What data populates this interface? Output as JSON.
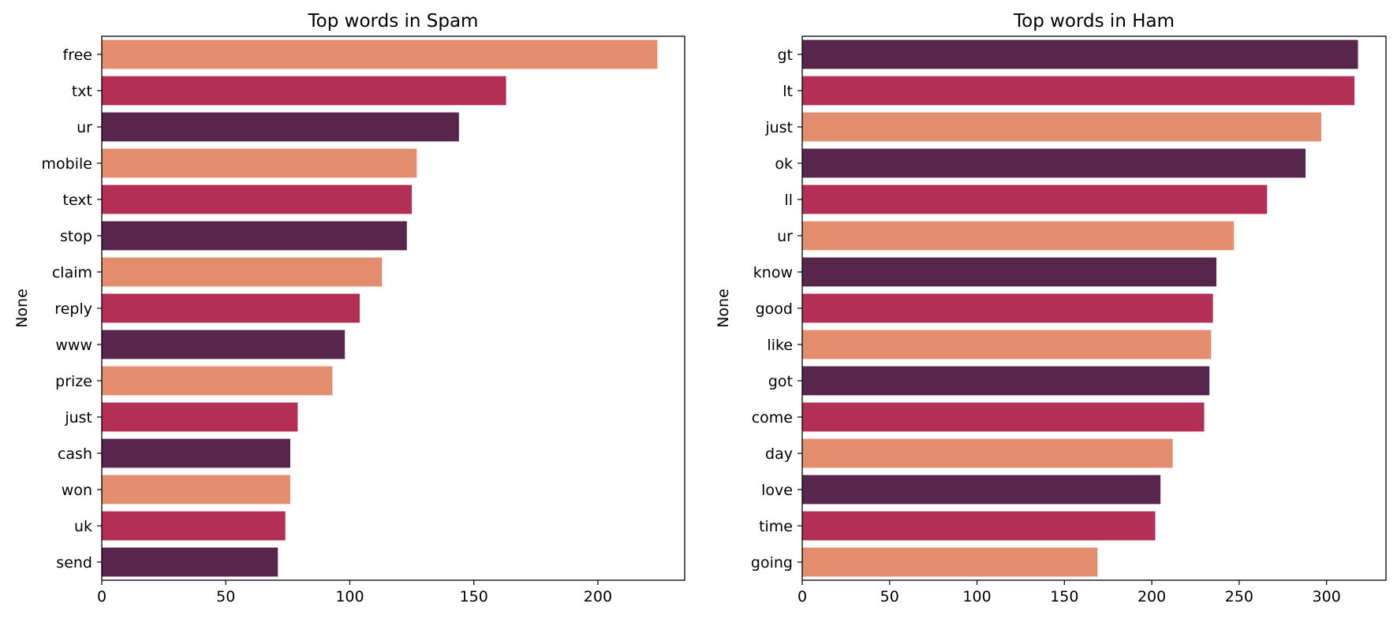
{
  "chart_data": [
    {
      "type": "bar",
      "orientation": "horizontal",
      "title": "Top words in Spam",
      "xlabel": "",
      "ylabel": "None",
      "categories": [
        "free",
        "txt",
        "ur",
        "mobile",
        "text",
        "stop",
        "claim",
        "reply",
        "www",
        "prize",
        "just",
        "cash",
        "won",
        "uk",
        "send"
      ],
      "values": [
        224,
        163,
        144,
        127,
        125,
        123,
        113,
        104,
        98,
        93,
        79,
        76,
        76,
        74,
        71
      ],
      "xlim": [
        0,
        235
      ],
      "xticks": [
        0,
        50,
        100,
        150,
        200
      ],
      "palette": [
        "#e38f6f",
        "#b32f55",
        "#58254c"
      ],
      "grid": false
    },
    {
      "type": "bar",
      "orientation": "horizontal",
      "title": "Top words in Ham",
      "xlabel": "",
      "ylabel": "None",
      "categories": [
        "gt",
        "lt",
        "just",
        "ok",
        "ll",
        "ur",
        "know",
        "good",
        "like",
        "got",
        "come",
        "day",
        "love",
        "time",
        "going"
      ],
      "values": [
        318,
        316,
        297,
        288,
        266,
        247,
        237,
        235,
        234,
        233,
        230,
        212,
        205,
        202,
        169
      ],
      "xlim": [
        0,
        334
      ],
      "xticks": [
        0,
        50,
        100,
        150,
        200,
        250,
        300
      ],
      "palette": [
        "#58254c",
        "#b32f55",
        "#e38f6f"
      ],
      "grid": false
    }
  ]
}
